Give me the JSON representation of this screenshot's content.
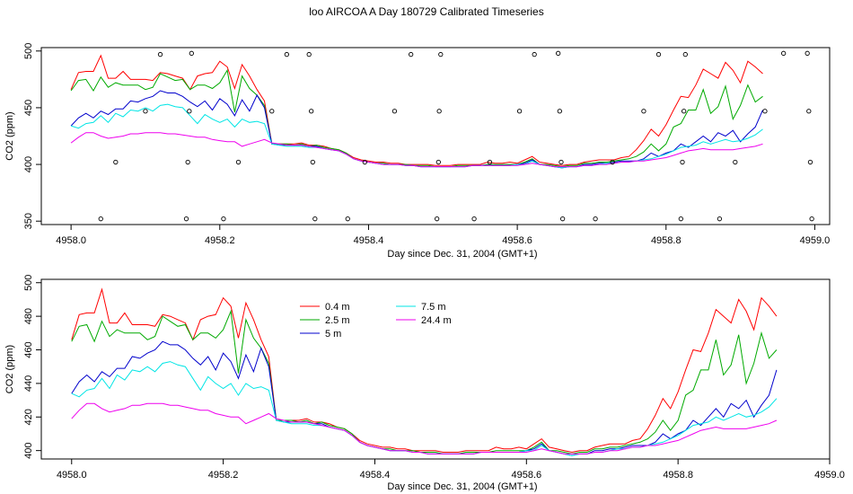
{
  "title": "loo AIRCOA A  Day 180729  Calibrated Timeseries",
  "chart_data": [
    {
      "type": "line",
      "panel": "top",
      "xlabel": "Day since Dec. 31, 2004 (GMT+1)",
      "ylabel": "CO2 (ppm)",
      "xlim": [
        4957.96,
        4959.02
      ],
      "ylim": [
        347,
        503
      ],
      "x_ticks": [
        4958.0,
        4958.2,
        4958.4,
        4958.6,
        4958.8,
        4959.0
      ],
      "x_tick_labels": [
        "4958.0",
        "4958.2",
        "4958.4",
        "4958.6",
        "4958.8",
        "4959.0"
      ],
      "y_ticks": [
        350,
        400,
        450,
        500
      ],
      "y_tick_labels": [
        "350",
        "400",
        "450",
        "500"
      ],
      "x_start": 4958.0,
      "x_step": 0.01,
      "series": [
        {
          "name": "0.4 m",
          "color": "#ff0000",
          "values": [
            466,
            481,
            482,
            482,
            496,
            476,
            476,
            482,
            475,
            475,
            475,
            474,
            481,
            480,
            478,
            476,
            466,
            478,
            480,
            481,
            491,
            486,
            467,
            488,
            478,
            466,
            456,
            418,
            418,
            418,
            418,
            419,
            417,
            417,
            416,
            414,
            413,
            410,
            406,
            404,
            403,
            402,
            402,
            401,
            401,
            400,
            400,
            400,
            400,
            399,
            399,
            399,
            400,
            400,
            400,
            400,
            402,
            401,
            401,
            402,
            401,
            404,
            407,
            402,
            401,
            400,
            399,
            400,
            400,
            402,
            403,
            404,
            404,
            404,
            406,
            407,
            413,
            421,
            431,
            425,
            435,
            448,
            460,
            459,
            470,
            484,
            480,
            476,
            490,
            483,
            472,
            491,
            486,
            480
          ]
        },
        {
          "name": "2.5 m",
          "color": "#00aa00",
          "values": [
            465,
            474,
            475,
            465,
            477,
            468,
            472,
            470,
            470,
            470,
            466,
            468,
            480,
            477,
            474,
            475,
            466,
            470,
            470,
            467,
            472,
            483,
            446,
            478,
            467,
            461,
            452,
            418,
            418,
            418,
            417,
            418,
            416,
            417,
            415,
            414,
            413,
            410,
            405,
            403,
            402,
            401,
            401,
            400,
            400,
            400,
            399,
            399,
            399,
            398,
            398,
            398,
            399,
            399,
            399,
            399,
            400,
            400,
            400,
            400,
            400,
            402,
            405,
            400,
            400,
            399,
            398,
            399,
            399,
            401,
            401,
            402,
            402,
            403,
            404,
            405,
            407,
            411,
            418,
            412,
            418,
            433,
            436,
            448,
            448,
            466,
            445,
            451,
            469,
            440,
            452,
            470,
            455,
            460
          ]
        },
        {
          "name": "5 m",
          "color": "#0000cc",
          "values": [
            434,
            441,
            445,
            441,
            447,
            444,
            449,
            449,
            456,
            455,
            458,
            460,
            465,
            463,
            463,
            460,
            455,
            451,
            456,
            448,
            458,
            453,
            443,
            457,
            447,
            461,
            450,
            418,
            417,
            417,
            417,
            417,
            416,
            416,
            414,
            413,
            412,
            409,
            405,
            403,
            402,
            401,
            400,
            400,
            400,
            399,
            399,
            398,
            398,
            398,
            398,
            398,
            398,
            398,
            399,
            399,
            399,
            399,
            399,
            399,
            400,
            401,
            404,
            400,
            399,
            398,
            397,
            398,
            398,
            400,
            400,
            401,
            401,
            402,
            403,
            403,
            403,
            405,
            410,
            407,
            410,
            412,
            418,
            415,
            420,
            425,
            420,
            428,
            425,
            430,
            420,
            427,
            433,
            448
          ]
        },
        {
          "name": "7.5 m",
          "color": "#00e5e5",
          "values": [
            434,
            432,
            436,
            437,
            443,
            437,
            445,
            442,
            448,
            447,
            450,
            447,
            452,
            453,
            451,
            450,
            443,
            436,
            444,
            440,
            437,
            440,
            433,
            440,
            437,
            438,
            436,
            418,
            417,
            416,
            416,
            416,
            415,
            415,
            414,
            413,
            412,
            409,
            405,
            403,
            402,
            401,
            400,
            400,
            400,
            399,
            399,
            398,
            398,
            398,
            398,
            398,
            398,
            398,
            399,
            399,
            399,
            399,
            399,
            399,
            400,
            400,
            403,
            400,
            399,
            398,
            397,
            398,
            398,
            399,
            399,
            400,
            401,
            401,
            402,
            402,
            403,
            404,
            405,
            407,
            409,
            412,
            415,
            416,
            417,
            420,
            418,
            420,
            422,
            420,
            421,
            423,
            426,
            431
          ]
        },
        {
          "name": "24.4 m",
          "color": "#ee00ee",
          "values": [
            419,
            424,
            428,
            428,
            425,
            423,
            424,
            425,
            427,
            427,
            428,
            428,
            428,
            427,
            427,
            426,
            425,
            424,
            424,
            422,
            421,
            420,
            420,
            416,
            418,
            420,
            422,
            419,
            418,
            417,
            417,
            417,
            416,
            415,
            414,
            413,
            412,
            409,
            405,
            403,
            402,
            401,
            400,
            400,
            400,
            399,
            399,
            398,
            398,
            398,
            398,
            398,
            398,
            398,
            399,
            399,
            399,
            399,
            399,
            399,
            399,
            400,
            401,
            400,
            399,
            398,
            398,
            398,
            398,
            399,
            399,
            400,
            400,
            401,
            402,
            402,
            403,
            403,
            404,
            405,
            406,
            408,
            410,
            412,
            413,
            414,
            413,
            413,
            413,
            413,
            414,
            415,
            416,
            418
          ]
        }
      ],
      "scatter": [
        {
          "x": 4958.04,
          "y": 352
        },
        {
          "x": 4958.06,
          "y": 402
        },
        {
          "x": 4958.1,
          "y": 447
        },
        {
          "x": 4958.12,
          "y": 497
        },
        {
          "x": 4958.155,
          "y": 352
        },
        {
          "x": 4958.157,
          "y": 402
        },
        {
          "x": 4958.159,
          "y": 447
        },
        {
          "x": 4958.162,
          "y": 498
        },
        {
          "x": 4958.205,
          "y": 352
        },
        {
          "x": 4958.225,
          "y": 402
        },
        {
          "x": 4958.27,
          "y": 447
        },
        {
          "x": 4958.29,
          "y": 497
        },
        {
          "x": 4958.32,
          "y": 497
        },
        {
          "x": 4958.323,
          "y": 447
        },
        {
          "x": 4958.325,
          "y": 402
        },
        {
          "x": 4958.328,
          "y": 352
        },
        {
          "x": 4958.372,
          "y": 352
        },
        {
          "x": 4958.395,
          "y": 402
        },
        {
          "x": 4958.435,
          "y": 447
        },
        {
          "x": 4958.457,
          "y": 497
        },
        {
          "x": 4958.492,
          "y": 352
        },
        {
          "x": 4958.494,
          "y": 402
        },
        {
          "x": 4958.495,
          "y": 447
        },
        {
          "x": 4958.497,
          "y": 497
        },
        {
          "x": 4958.542,
          "y": 352
        },
        {
          "x": 4958.563,
          "y": 402
        },
        {
          "x": 4958.603,
          "y": 447
        },
        {
          "x": 4958.623,
          "y": 497
        },
        {
          "x": 4958.655,
          "y": 498
        },
        {
          "x": 4958.657,
          "y": 447
        },
        {
          "x": 4958.659,
          "y": 402
        },
        {
          "x": 4958.661,
          "y": 352
        },
        {
          "x": 4958.705,
          "y": 352
        },
        {
          "x": 4958.728,
          "y": 402
        },
        {
          "x": 4958.77,
          "y": 447
        },
        {
          "x": 4958.79,
          "y": 497
        },
        {
          "x": 4958.82,
          "y": 352
        },
        {
          "x": 4958.822,
          "y": 402
        },
        {
          "x": 4958.824,
          "y": 447
        },
        {
          "x": 4958.826,
          "y": 497
        },
        {
          "x": 4958.872,
          "y": 352
        },
        {
          "x": 4958.893,
          "y": 402
        },
        {
          "x": 4958.933,
          "y": 447
        },
        {
          "x": 4958.958,
          "y": 498
        },
        {
          "x": 4958.99,
          "y": 498
        },
        {
          "x": 4958.992,
          "y": 447
        },
        {
          "x": 4958.994,
          "y": 402
        },
        {
          "x": 4958.996,
          "y": 352
        }
      ]
    },
    {
      "type": "line",
      "panel": "bottom",
      "xlabel": "Day since Dec. 31, 2004 (GMT+1)",
      "ylabel": "CO2 (ppm)",
      "xlim": [
        4957.96,
        4959.0
      ],
      "ylim": [
        395,
        502
      ],
      "x_ticks": [
        4958.0,
        4958.2,
        4958.4,
        4958.6,
        4958.8,
        4959.0
      ],
      "x_tick_labels": [
        "4958.0",
        "4958.2",
        "4958.4",
        "4958.6",
        "4958.8",
        "4959.0"
      ],
      "y_ticks": [
        400,
        420,
        440,
        460,
        480,
        500
      ],
      "y_tick_labels": [
        "400",
        "420",
        "440",
        "460",
        "480",
        "500"
      ],
      "legend": {
        "placement": "top-left",
        "entries": [
          {
            "label": "0.4 m",
            "color": "#ff0000"
          },
          {
            "label": "7.5 m",
            "color": "#00e5e5"
          },
          {
            "label": "2.5 m",
            "color": "#00aa00"
          },
          {
            "label": "24.4 m",
            "color": "#ee00ee"
          },
          {
            "label": "5 m",
            "color": "#0000cc"
          }
        ]
      },
      "x_start": 4958.0,
      "x_step": 0.01,
      "series_ref": "same as top panel series"
    }
  ]
}
